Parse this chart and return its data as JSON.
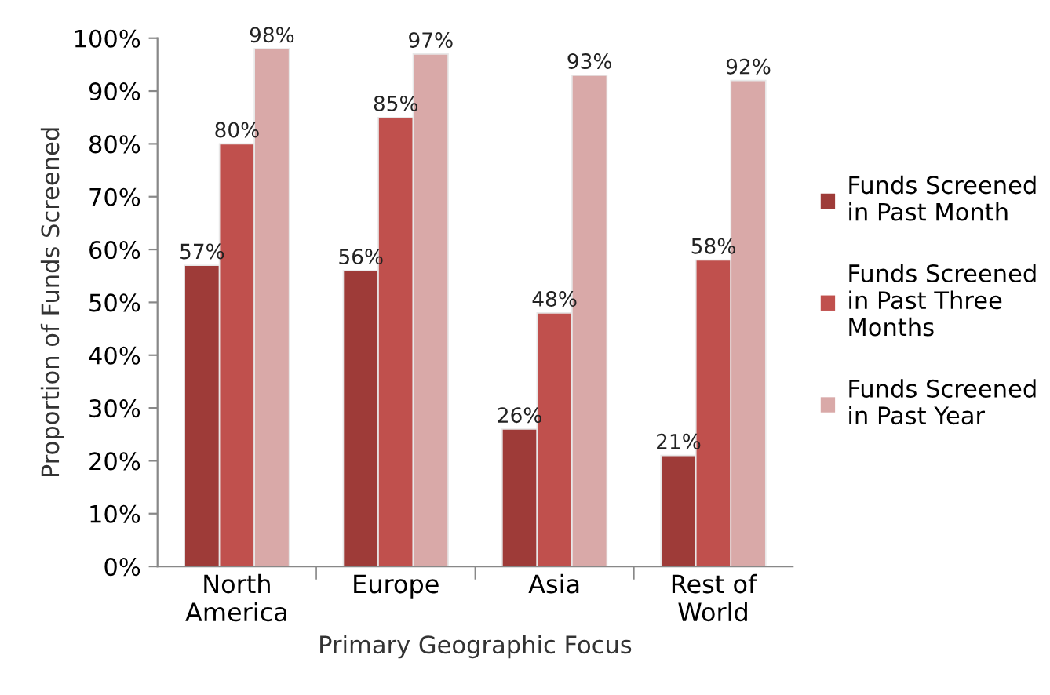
{
  "chart_data": {
    "type": "bar",
    "xlabel": "Primary Geographic Focus",
    "ylabel": "Proportion of Funds Screened",
    "categories": [
      "North America",
      "Europe",
      "Asia",
      "Rest of World"
    ],
    "series": [
      {
        "name": "Funds Screened in Past Month",
        "color": "#9e3b38",
        "values": [
          57,
          56,
          26,
          21
        ],
        "value_labels": [
          "57%",
          "56%",
          "26%",
          "21%"
        ]
      },
      {
        "name": "Funds Screened in Past Three Months",
        "color": "#c0504d",
        "values": [
          80,
          85,
          48,
          58
        ],
        "value_labels": [
          "80%",
          "85%",
          "48%",
          "58%"
        ]
      },
      {
        "name": "Funds Screened in Past Year",
        "color": "#d9a9a8",
        "values": [
          98,
          97,
          93,
          92
        ],
        "value_labels": [
          "98%",
          "97%",
          "93%",
          "92%"
        ]
      }
    ],
    "ylim": [
      0,
      100
    ],
    "yticks": [
      {
        "value": 0,
        "label": "0%"
      },
      {
        "value": 10,
        "label": "10%"
      },
      {
        "value": 20,
        "label": "20%"
      },
      {
        "value": 30,
        "label": "30%"
      },
      {
        "value": 40,
        "label": "40%"
      },
      {
        "value": 50,
        "label": "50%"
      },
      {
        "value": 60,
        "label": "60%"
      },
      {
        "value": 70,
        "label": "70%"
      },
      {
        "value": 80,
        "label": "80%"
      },
      {
        "value": 90,
        "label": "90%"
      },
      {
        "value": 100,
        "label": "100%"
      }
    ],
    "grid": false,
    "legend": "right"
  }
}
